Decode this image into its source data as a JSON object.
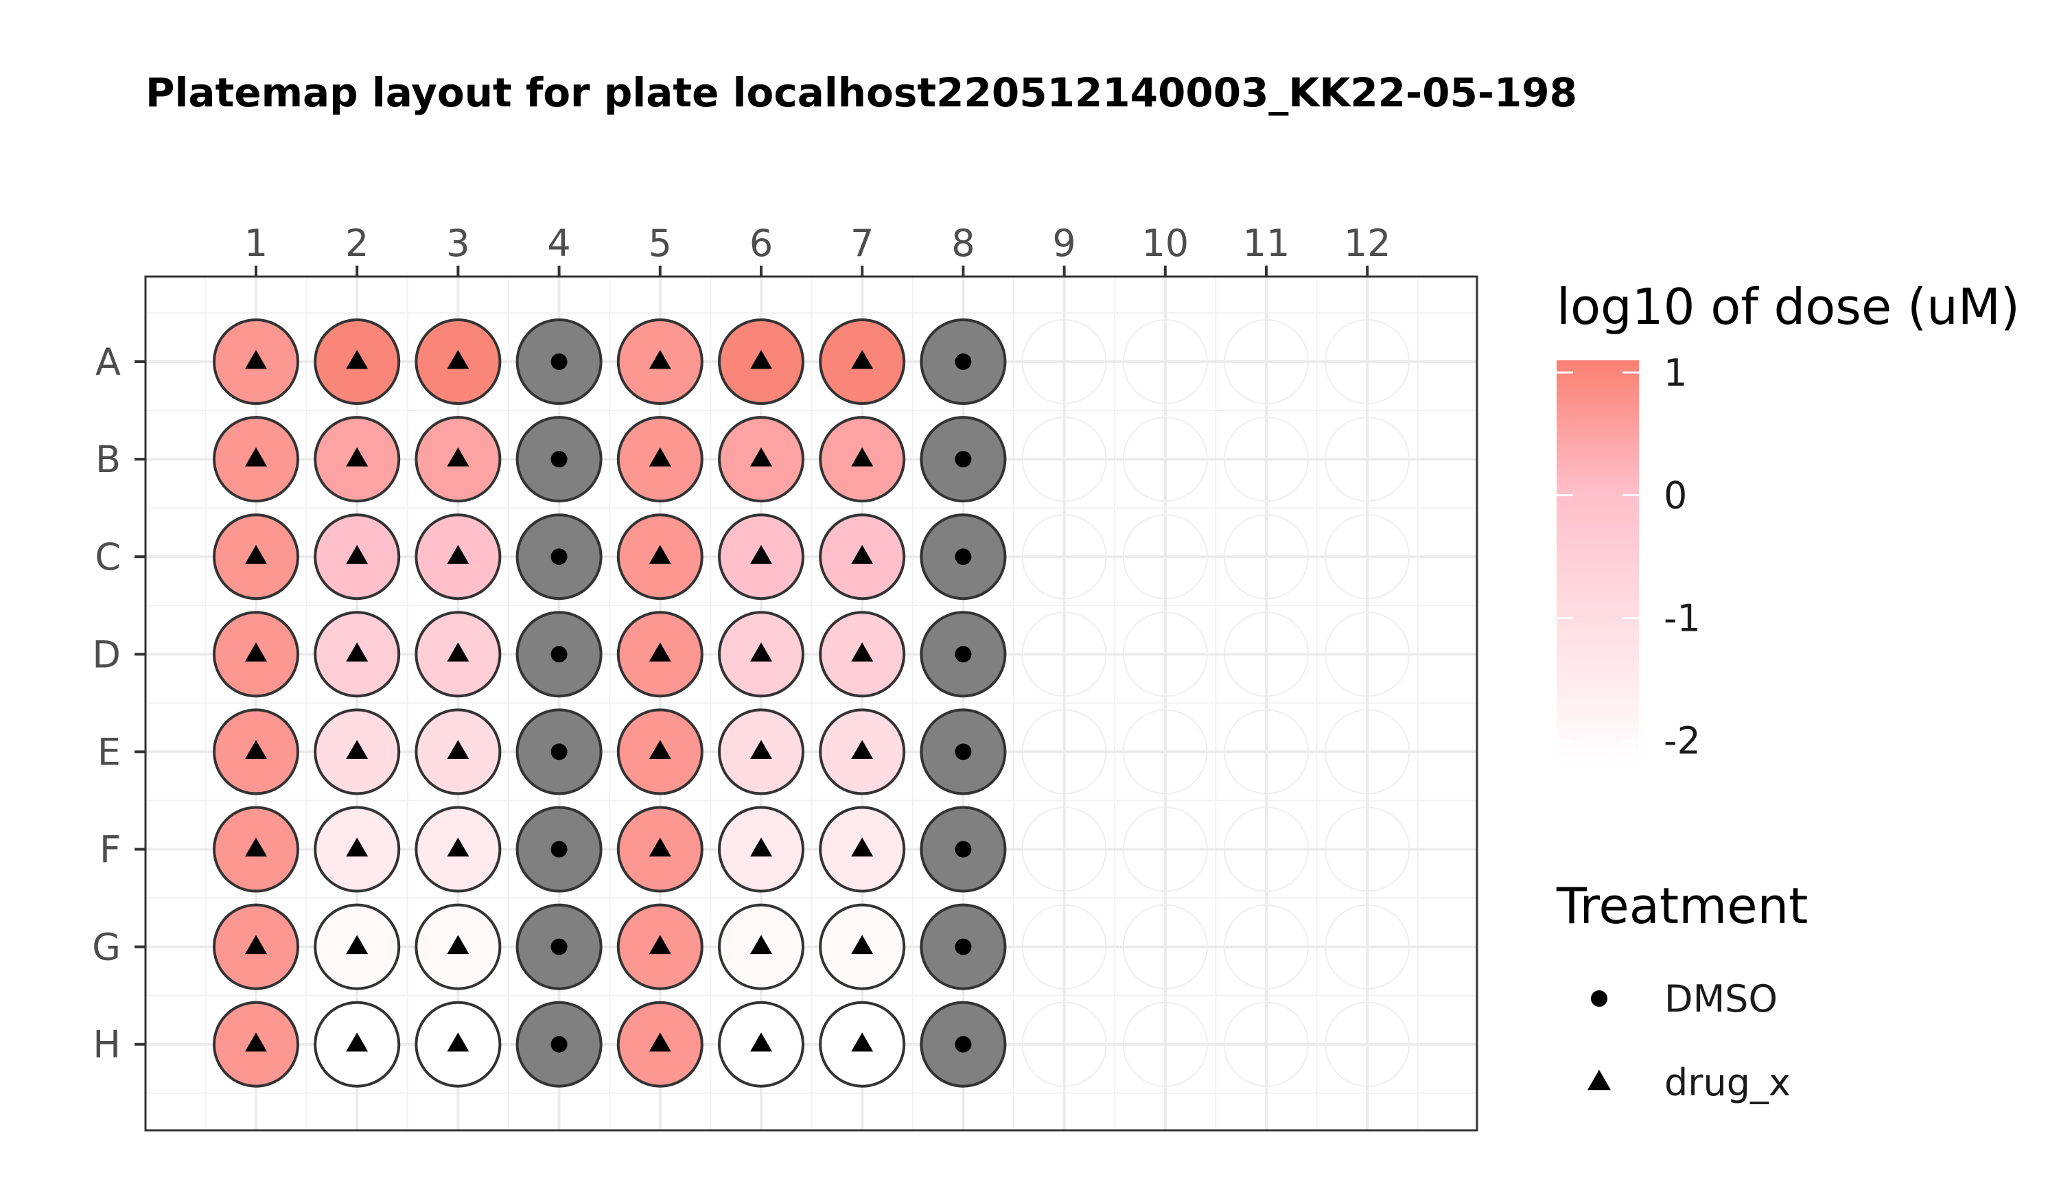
{
  "chart_data": {
    "type": "heatmap",
    "title": "Platemap layout for plate localhost220512140003_KK22-05-198",
    "columns": [
      "1",
      "2",
      "3",
      "4",
      "5",
      "6",
      "7",
      "8",
      "9",
      "10",
      "11",
      "12"
    ],
    "rows": [
      "A",
      "B",
      "C",
      "D",
      "E",
      "F",
      "G",
      "H"
    ],
    "grid": true,
    "color_legend": {
      "title": "log10 of dose (uM)",
      "ticks": [
        1,
        0,
        -1,
        -2
      ],
      "tick_labels": [
        "1",
        "0",
        "-1",
        "-2"
      ],
      "range": [
        -2.2,
        1.1
      ],
      "low_color": "#ffffff",
      "mid_color": "#ffc0cb",
      "high_color": "#fa8072",
      "position": "right"
    },
    "shape_legend": {
      "title": "Treatment",
      "entries": [
        {
          "label": "DMSO",
          "shape": "circle"
        },
        {
          "label": "drug_x",
          "shape": "triangle"
        }
      ],
      "position": "right"
    },
    "na_color": "#808080",
    "wells": {
      "A": {
        "treatment": [
          "drug_x",
          "drug_x",
          "drug_x",
          "DMSO",
          "drug_x",
          "drug_x",
          "drug_x",
          "DMSO"
        ],
        "log10_dose": [
          0.7,
          1.0,
          1.0,
          null,
          0.7,
          1.0,
          1.0,
          null
        ]
      },
      "B": {
        "treatment": [
          "drug_x",
          "drug_x",
          "drug_x",
          "DMSO",
          "drug_x",
          "drug_x",
          "drug_x",
          "DMSO"
        ],
        "log10_dose": [
          0.7,
          0.5,
          0.5,
          null,
          0.7,
          0.5,
          0.5,
          null
        ]
      },
      "C": {
        "treatment": [
          "drug_x",
          "drug_x",
          "drug_x",
          "DMSO",
          "drug_x",
          "drug_x",
          "drug_x",
          "DMSO"
        ],
        "log10_dose": [
          0.7,
          0.0,
          0.0,
          null,
          0.7,
          0.0,
          0.0,
          null
        ]
      },
      "D": {
        "treatment": [
          "drug_x",
          "drug_x",
          "drug_x",
          "DMSO",
          "drug_x",
          "drug_x",
          "drug_x",
          "DMSO"
        ],
        "log10_dose": [
          0.7,
          -0.5,
          -0.5,
          null,
          0.7,
          -0.5,
          -0.5,
          null
        ]
      },
      "E": {
        "treatment": [
          "drug_x",
          "drug_x",
          "drug_x",
          "DMSO",
          "drug_x",
          "drug_x",
          "drug_x",
          "DMSO"
        ],
        "log10_dose": [
          0.7,
          -1.0,
          -1.0,
          null,
          0.7,
          -1.0,
          -1.0,
          null
        ]
      },
      "F": {
        "treatment": [
          "drug_x",
          "drug_x",
          "drug_x",
          "DMSO",
          "drug_x",
          "drug_x",
          "drug_x",
          "DMSO"
        ],
        "log10_dose": [
          0.7,
          -1.5,
          -1.5,
          null,
          0.7,
          -1.5,
          -1.5,
          null
        ]
      },
      "G": {
        "treatment": [
          "drug_x",
          "drug_x",
          "drug_x",
          "DMSO",
          "drug_x",
          "drug_x",
          "drug_x",
          "DMSO"
        ],
        "log10_dose": [
          0.7,
          -2.0,
          -2.0,
          null,
          0.7,
          -2.0,
          -2.0,
          null
        ]
      },
      "H": {
        "treatment": [
          "drug_x",
          "drug_x",
          "drug_x",
          "DMSO",
          "drug_x",
          "drug_x",
          "drug_x",
          "DMSO"
        ],
        "log10_dose": [
          0.7,
          -2.2,
          -2.2,
          null,
          0.7,
          -2.2,
          -2.2,
          null
        ]
      }
    }
  }
}
